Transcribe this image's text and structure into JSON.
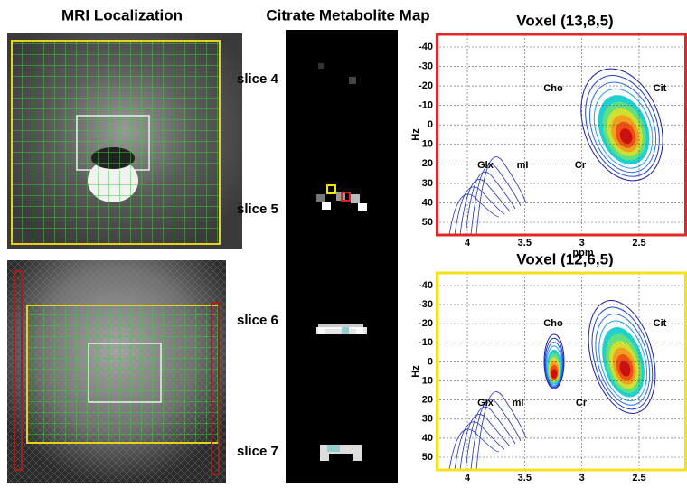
{
  "mri": {
    "title": "MRI Localization"
  },
  "citrate_map": {
    "title": "Citrate Metabolite Map",
    "slices": [
      "slice 4",
      "slice 5",
      "slice 6",
      "slice 7"
    ]
  },
  "spectra": [
    {
      "title": "Voxel (13,8,5)",
      "y_label": "Hz",
      "x_label": "ppm",
      "y_ticks": [
        -40,
        -30,
        -20,
        -10,
        0,
        10,
        20,
        30,
        40,
        50
      ],
      "x_ticks": [
        4,
        3.5,
        3,
        2.5
      ],
      "peaks": [
        "Cho",
        "Cit",
        "Glx",
        "mI",
        "Cr"
      ]
    },
    {
      "title": "Voxel (12,6,5)",
      "y_label": "Hz",
      "y_ticks": [
        -40,
        -30,
        -20,
        -10,
        0,
        10,
        20,
        30,
        40,
        50
      ],
      "x_ticks": [
        4,
        3.5,
        3,
        2.5
      ],
      "peaks": [
        "Cho",
        "Cit",
        "Glx",
        "mI",
        "Cr"
      ]
    }
  ]
}
